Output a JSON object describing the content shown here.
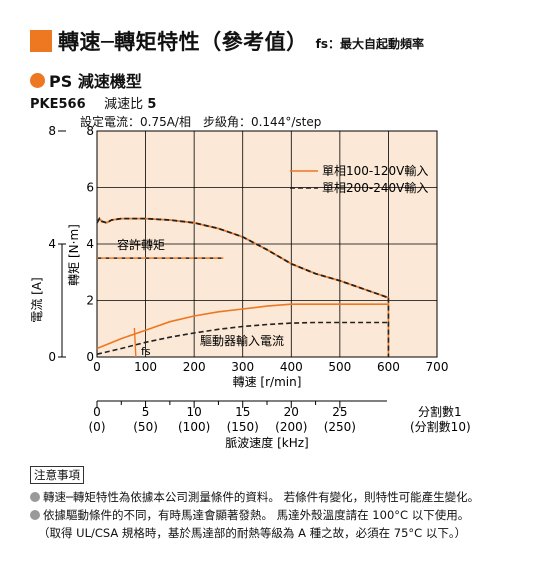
{
  "header": {
    "title": "轉速─轉矩特性（參考值）",
    "subtitle": "fs：最大自起動頻率",
    "accent_color": "#ee7722"
  },
  "series_title": "PS 減速機型",
  "model": {
    "name": "PKE566",
    "ratio_label": "減速比",
    "ratio_value": "5"
  },
  "spec": "設定電流：0.75A/相　步級角：0.144°/step",
  "chart_data": {
    "type": "line",
    "x_axis": {
      "label": "轉速 [r/min]",
      "range": [
        0,
        700
      ],
      "ticks": [
        0,
        100,
        200,
        300,
        400,
        500,
        600,
        700
      ]
    },
    "y_axis_left_upper": {
      "label": "轉矩 [N·m]",
      "range": [
        0,
        8
      ],
      "ticks": [
        0,
        2,
        4,
        6,
        8
      ]
    },
    "y_axis_left_lower": {
      "label": "電流 [A]",
      "range": [
        0,
        4
      ],
      "ticks": [
        0,
        4,
        8
      ]
    },
    "pulse_axis": {
      "label": "脈波速度 [kHz]",
      "div1": {
        "ticks": [
          "0",
          "5",
          "10",
          "15",
          "20",
          "25"
        ],
        "name": "分割數1"
      },
      "div10": {
        "ticks": [
          "(0)",
          "(50)",
          "(100)",
          "(150)",
          "(200)",
          "(250)"
        ],
        "name": "(分割數10)"
      }
    },
    "plot_background": "#fbe8d6",
    "legend_position": "top-right",
    "series": [
      {
        "name": "單相100-120V輸入",
        "color": "#ee7722",
        "style": "solid",
        "torque": [
          [
            0,
            4.75
          ],
          [
            5,
            4.9
          ],
          [
            10,
            4.8
          ],
          [
            20,
            4.75
          ],
          [
            30,
            4.85
          ],
          [
            50,
            4.9
          ],
          [
            100,
            4.9
          ],
          [
            150,
            4.85
          ],
          [
            200,
            4.75
          ],
          [
            250,
            4.55
          ],
          [
            300,
            4.25
          ],
          [
            350,
            3.8
          ],
          [
            400,
            3.3
          ],
          [
            450,
            2.95
          ],
          [
            500,
            2.7
          ],
          [
            550,
            2.4
          ],
          [
            600,
            2.1
          ]
        ],
        "current": [
          [
            0,
            0.3
          ],
          [
            50,
            0.65
          ],
          [
            100,
            0.95
          ],
          [
            150,
            1.25
          ],
          [
            200,
            1.45
          ],
          [
            250,
            1.6
          ],
          [
            300,
            1.7
          ],
          [
            350,
            1.8
          ],
          [
            400,
            1.87
          ],
          [
            450,
            1.87
          ],
          [
            500,
            1.87
          ],
          [
            550,
            1.87
          ],
          [
            600,
            1.87
          ]
        ]
      },
      {
        "name": "單相200-240V輸入",
        "color": "#222222",
        "style": "dashed",
        "torque": [
          [
            0,
            4.75
          ],
          [
            5,
            4.9
          ],
          [
            10,
            4.8
          ],
          [
            20,
            4.75
          ],
          [
            30,
            4.85
          ],
          [
            50,
            4.9
          ],
          [
            100,
            4.9
          ],
          [
            150,
            4.85
          ],
          [
            200,
            4.75
          ],
          [
            250,
            4.55
          ],
          [
            300,
            4.25
          ],
          [
            350,
            3.8
          ],
          [
            400,
            3.3
          ],
          [
            450,
            2.95
          ],
          [
            500,
            2.7
          ],
          [
            550,
            2.4
          ],
          [
            600,
            2.1
          ]
        ],
        "current": [
          [
            0,
            0.1
          ],
          [
            50,
            0.3
          ],
          [
            100,
            0.52
          ],
          [
            150,
            0.7
          ],
          [
            200,
            0.85
          ],
          [
            250,
            0.98
          ],
          [
            300,
            1.08
          ],
          [
            350,
            1.15
          ],
          [
            400,
            1.2
          ],
          [
            450,
            1.22
          ],
          [
            500,
            1.22
          ],
          [
            550,
            1.22
          ],
          [
            600,
            1.22
          ]
        ]
      }
    ],
    "allowable_torque": {
      "label": "容許轉矩",
      "value": 3.5,
      "color": "#ee7722"
    },
    "fs": {
      "label": "fs",
      "x": 80
    },
    "annotation": "驅動器輸入電流"
  },
  "notes": {
    "title": "注意事項",
    "lines": [
      "轉速─轉矩特性為依據本公司測量條件的資料。 若條件有變化，則特性可能產生變化。",
      "依據驅動條件的不同，有時馬達會顯著發熱。 馬達外殼溫度請在 100°C 以下使用。",
      "（取得 UL/CSA 規格時，基於馬達部的耐熱等級為 A 種之故，必須在 75°C 以下。）"
    ]
  }
}
